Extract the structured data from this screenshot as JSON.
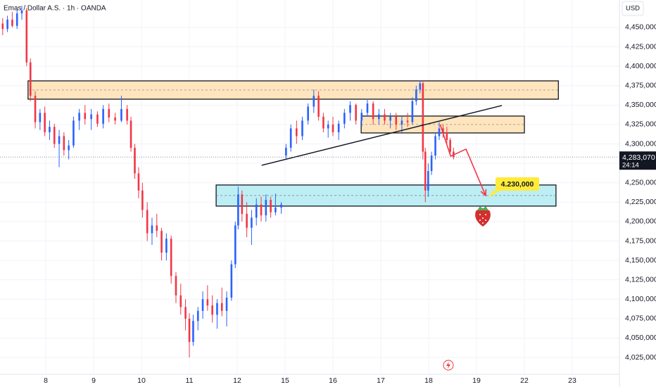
{
  "chart_data": {
    "type": "candlestick",
    "title": "Emas / Dollar A.S. · 1h · OANDA",
    "currency": "USD",
    "up_color": "#2962ff",
    "down_color": "#f23645",
    "grid": true,
    "xlim": [
      -0.956,
      11.985
    ],
    "ylim": [
      4003300,
      4485300
    ],
    "xticks": [
      {
        "value": 0,
        "label": "8"
      },
      {
        "value": 1,
        "label": "9"
      },
      {
        "value": 2,
        "label": "10"
      },
      {
        "value": 3,
        "label": "11"
      },
      {
        "value": 4,
        "label": "12"
      },
      {
        "value": 5,
        "label": "15"
      },
      {
        "value": 6,
        "label": "16"
      },
      {
        "value": 7,
        "label": "17"
      },
      {
        "value": 8,
        "label": "18"
      },
      {
        "value": 9,
        "label": "19"
      },
      {
        "value": 10,
        "label": "22"
      },
      {
        "value": 11,
        "label": "23"
      }
    ],
    "yticks": [
      {
        "value": 4025000,
        "label": "4,025,000"
      },
      {
        "value": 4050000,
        "label": "4,050,000"
      },
      {
        "value": 4075000,
        "label": "4,075,000"
      },
      {
        "value": 4100000,
        "label": "4,100,000"
      },
      {
        "value": 4125000,
        "label": "4,125,000"
      },
      {
        "value": 4150000,
        "label": "4,150,000"
      },
      {
        "value": 4175000,
        "label": "4,175,000"
      },
      {
        "value": 4200000,
        "label": "4,200,000"
      },
      {
        "value": 4225000,
        "label": "4,225,000"
      },
      {
        "value": 4250000,
        "label": "4,250,000"
      },
      {
        "value": 4275000,
        "label": "4,275,000"
      },
      {
        "value": 4300000,
        "label": "4,300,000"
      },
      {
        "value": 4325000,
        "label": "4,325,000"
      },
      {
        "value": 4350000,
        "label": "4,350,000"
      },
      {
        "value": 4375000,
        "label": "4,375,000"
      },
      {
        "value": 4400000,
        "label": "4,400,000"
      },
      {
        "value": 4425000,
        "label": "4,425,000"
      },
      {
        "value": 4450000,
        "label": "4,450,000"
      }
    ],
    "x": [
      -0.9,
      -0.8,
      -0.7,
      -0.6,
      -0.5,
      -0.4,
      -0.32,
      -0.22,
      -0.12,
      -0.02,
      0.08,
      0.18,
      0.28,
      0.38,
      0.48,
      0.58,
      0.7,
      0.82,
      0.95,
      1.08,
      1.2,
      1.32,
      1.45,
      1.58,
      1.7,
      1.78,
      1.86,
      1.94,
      2.02,
      2.12,
      2.22,
      2.32,
      2.42,
      2.52,
      2.62,
      2.72,
      2.82,
      2.92,
      3.0,
      3.08,
      3.18,
      3.28,
      3.38,
      3.48,
      3.58,
      3.68,
      3.78,
      3.88,
      3.96,
      4.02,
      4.1,
      4.2,
      4.3,
      4.4,
      4.5,
      4.6,
      4.7,
      4.8,
      4.92,
      5.02,
      5.12,
      5.24,
      5.36,
      5.48,
      5.6,
      5.7,
      5.8,
      5.9,
      6.0,
      6.12,
      6.24,
      6.36,
      6.48,
      6.6,
      6.72,
      6.84,
      6.96,
      7.08,
      7.2,
      7.32,
      7.44,
      7.56,
      7.66,
      7.74,
      7.82,
      7.88,
      7.93,
      7.99,
      8.06,
      8.14,
      8.22,
      8.3,
      8.38,
      8.45,
      8.52
    ],
    "open": [
      4455000,
      4448000,
      4460000,
      4452000,
      4468000,
      4472000,
      4405000,
      4362000,
      4328000,
      4340000,
      4315000,
      4322000,
      4300000,
      4310000,
      4292000,
      4298000,
      4330000,
      4340000,
      4332000,
      4338000,
      4326000,
      4345000,
      4334000,
      4330000,
      4345000,
      4330000,
      4295000,
      4262000,
      4240000,
      4215000,
      4185000,
      4195000,
      4188000,
      4160000,
      4178000,
      4130000,
      4105000,
      4090000,
      4075000,
      4045000,
      4072000,
      4085000,
      4100000,
      4092000,
      4080000,
      4095000,
      4085000,
      4102000,
      4145000,
      4195000,
      4235000,
      4210000,
      4192000,
      4205000,
      4222000,
      4208000,
      4228000,
      4212000,
      4218000,
      4285000,
      4295000,
      4320000,
      4310000,
      4330000,
      4348000,
      4362000,
      4335000,
      4320000,
      4325000,
      4315000,
      4326000,
      4340000,
      4350000,
      4330000,
      4340000,
      4352000,
      4332000,
      4338000,
      4330000,
      4335000,
      4325000,
      4330000,
      4328000,
      4355000,
      4370000,
      4378000,
      4290000,
      4240000,
      4265000,
      4285000,
      4310000,
      4320000,
      4315000,
      4305000,
      4290000
    ],
    "high": [
      4462000,
      4465000,
      4470000,
      4474000,
      4478000,
      4475000,
      4410000,
      4368000,
      4345000,
      4348000,
      4330000,
      4326000,
      4318000,
      4315000,
      4305000,
      4335000,
      4345000,
      4350000,
      4345000,
      4342000,
      4350000,
      4352000,
      4340000,
      4362000,
      4350000,
      4335000,
      4300000,
      4270000,
      4250000,
      4225000,
      4205000,
      4210000,
      4192000,
      4185000,
      4182000,
      4135000,
      4120000,
      4100000,
      4082000,
      4080000,
      4090000,
      4110000,
      4118000,
      4105000,
      4100000,
      4115000,
      4110000,
      4150000,
      4200000,
      4245000,
      4240000,
      4225000,
      4215000,
      4230000,
      4232000,
      4235000,
      4232000,
      4236000,
      4225000,
      4300000,
      4325000,
      4330000,
      4335000,
      4352000,
      4370000,
      4368000,
      4340000,
      4330000,
      4335000,
      4330000,
      4345000,
      4355000,
      4352000,
      4345000,
      4358000,
      4355000,
      4345000,
      4345000,
      4340000,
      4340000,
      4335000,
      4340000,
      4360000,
      4375000,
      4382000,
      4380000,
      4295000,
      4275000,
      4290000,
      4315000,
      4328000,
      4325000,
      4322000,
      4308000,
      4295000
    ],
    "low": [
      4440000,
      4444000,
      4450000,
      4448000,
      4460000,
      4400000,
      4355000,
      4320000,
      4318000,
      4310000,
      4305000,
      4295000,
      4270000,
      4285000,
      4280000,
      4295000,
      4318000,
      4325000,
      4318000,
      4322000,
      4320000,
      4328000,
      4325000,
      4328000,
      4325000,
      4290000,
      4255000,
      4230000,
      4205000,
      4175000,
      4170000,
      4180000,
      4150000,
      4150000,
      4120000,
      4095000,
      4080000,
      4060000,
      4025000,
      4040000,
      4060000,
      4075000,
      4085000,
      4070000,
      4062000,
      4078000,
      4065000,
      4098000,
      4140000,
      4190000,
      4200000,
      4180000,
      4170000,
      4195000,
      4200000,
      4200000,
      4205000,
      4208000,
      4210000,
      4280000,
      4290000,
      4300000,
      4305000,
      4325000,
      4340000,
      4330000,
      4315000,
      4308000,
      4310000,
      4305000,
      4320000,
      4330000,
      4325000,
      4322000,
      4335000,
      4325000,
      4325000,
      4325000,
      4320000,
      4318000,
      4315000,
      4322000,
      4325000,
      4350000,
      4365000,
      4280000,
      4225000,
      4232000,
      4260000,
      4280000,
      4305000,
      4308000,
      4300000,
      4285000,
      4280000
    ],
    "close": [
      4448000,
      4460000,
      4452000,
      4468000,
      4472000,
      4405000,
      4362000,
      4328000,
      4340000,
      4315000,
      4322000,
      4300000,
      4310000,
      4292000,
      4298000,
      4330000,
      4340000,
      4332000,
      4338000,
      4326000,
      4345000,
      4334000,
      4330000,
      4345000,
      4330000,
      4295000,
      4262000,
      4240000,
      4215000,
      4185000,
      4195000,
      4188000,
      4160000,
      4178000,
      4130000,
      4105000,
      4090000,
      4075000,
      4045000,
      4072000,
      4085000,
      4100000,
      4092000,
      4080000,
      4095000,
      4085000,
      4102000,
      4145000,
      4195000,
      4235000,
      4210000,
      4192000,
      4205000,
      4222000,
      4208000,
      4228000,
      4212000,
      4218000,
      4222000,
      4295000,
      4320000,
      4310000,
      4330000,
      4348000,
      4362000,
      4335000,
      4320000,
      4325000,
      4315000,
      4326000,
      4340000,
      4350000,
      4330000,
      4340000,
      4352000,
      4332000,
      4338000,
      4330000,
      4335000,
      4325000,
      4330000,
      4328000,
      4355000,
      4370000,
      4378000,
      4290000,
      4240000,
      4265000,
      4285000,
      4310000,
      4320000,
      4315000,
      4305000,
      4290000,
      4283070
    ],
    "last_price": {
      "value": 4283070,
      "label": "4,283,070"
    },
    "countdown": "24:14",
    "zones": [
      {
        "color": "#ffe0b2",
        "x": [
          -0.37,
          10.71
        ],
        "y": [
          4357600,
          4381160
        ]
      },
      {
        "color": "#ffe0b2",
        "x": [
          6.59,
          10.0
        ],
        "y": [
          4314130,
          4335870
        ]
      },
      {
        "color": "#b2ebf2",
        "x": [
          3.56,
          10.66
        ],
        "y": [
          4219930,
          4247100
        ]
      }
    ],
    "trendline": {
      "x": [
        4.51,
        9.53
      ],
      "y": [
        4272460,
        4349460
      ]
    },
    "projection": {
      "color": "#f23645",
      "x": [
        8.24,
        8.46,
        8.78,
        9.19
      ],
      "y": [
        4325000,
        4284240,
        4293300,
        4233500
      ]
    },
    "annotation": "4.230,000"
  }
}
